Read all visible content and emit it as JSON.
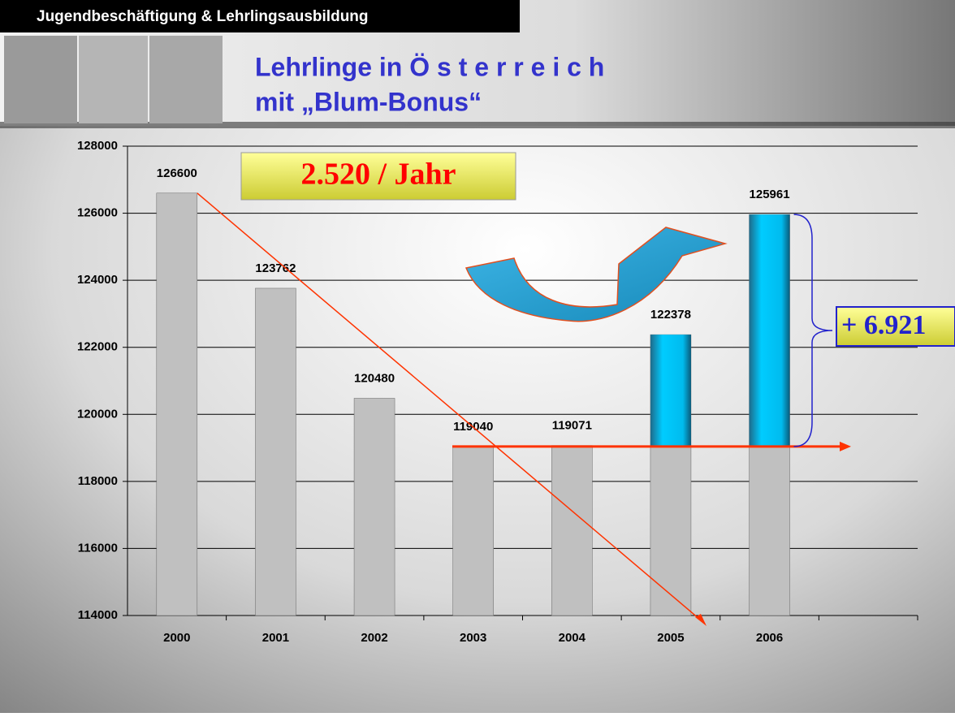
{
  "header": {
    "section": "Jugendbeschäftigung & Lehrlingsausbildung",
    "title_line1": "Lehrlinge in Ö s t e r r e i c h",
    "title_line2": "mit „Blum-Bonus“"
  },
  "chart_data": {
    "type": "bar",
    "categories": [
      "2000",
      "2001",
      "2002",
      "2003",
      "2004",
      "2005",
      "2006",
      null
    ],
    "values": [
      126600,
      123762,
      120480,
      119040,
      119071,
      122378,
      125961,
      null
    ],
    "color": "#c0c0c0",
    "bonus_color": "#00ccff",
    "ylim": [
      114000,
      128000
    ],
    "yticks": [
      114000,
      116000,
      118000,
      120000,
      122000,
      124000,
      126000,
      128000
    ],
    "grid": true,
    "annotations": [
      "2.520 / Jahr",
      "+ 6.921"
    ]
  }
}
